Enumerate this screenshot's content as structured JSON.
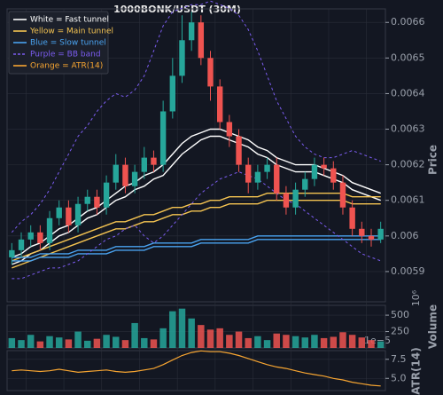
{
  "chart_data": {
    "type": "candlestick",
    "title": "1000BONK/USDT (30M)",
    "ylabel": "Price",
    "open": [
      0.00594,
      0.00596,
      0.00599,
      0.00601,
      0.00598,
      0.00605,
      0.00608,
      0.00603,
      0.00609,
      0.00611,
      0.00608,
      0.00615,
      0.0062,
      0.00614,
      0.00618,
      0.00622,
      0.0062,
      0.00635,
      0.00645,
      0.00655,
      0.0066,
      0.0065,
      0.00642,
      0.00632,
      0.00628,
      0.0062,
      0.00615,
      0.00618,
      0.0062,
      0.00612,
      0.00608,
      0.00613,
      0.00616,
      0.0062,
      0.00619,
      0.00615,
      0.00608,
      0.00602,
      0.006,
      0.00599
    ],
    "high": [
      0.00598,
      0.00601,
      0.00603,
      0.00603,
      0.00607,
      0.0061,
      0.0061,
      0.00611,
      0.00613,
      0.00613,
      0.00617,
      0.00623,
      0.00622,
      0.0062,
      0.00625,
      0.00624,
      0.00638,
      0.0065,
      0.00662,
      0.00663,
      0.00662,
      0.00652,
      0.00644,
      0.00634,
      0.0063,
      0.00622,
      0.0062,
      0.00622,
      0.00622,
      0.00614,
      0.00615,
      0.00618,
      0.00622,
      0.00622,
      0.00621,
      0.00617,
      0.0061,
      0.00604,
      0.00602,
      0.00604
    ],
    "low": [
      0.00592,
      0.00594,
      0.00597,
      0.00596,
      0.00596,
      0.00603,
      0.00601,
      0.00601,
      0.00607,
      0.00606,
      0.00606,
      0.00613,
      0.00612,
      0.00612,
      0.00616,
      0.00618,
      0.00618,
      0.00633,
      0.00643,
      0.00652,
      0.00648,
      0.00638,
      0.0063,
      0.00625,
      0.00618,
      0.00612,
      0.00613,
      0.00616,
      0.0061,
      0.00606,
      0.00606,
      0.00611,
      0.00614,
      0.00617,
      0.00613,
      0.00606,
      0.006,
      0.00598,
      0.00597,
      0.00598
    ],
    "close": [
      0.00596,
      0.00599,
      0.00601,
      0.00598,
      0.00605,
      0.00608,
      0.00603,
      0.00609,
      0.00611,
      0.00608,
      0.00615,
      0.0062,
      0.00614,
      0.00618,
      0.00622,
      0.0062,
      0.00635,
      0.00645,
      0.00655,
      0.0066,
      0.0065,
      0.00642,
      0.00632,
      0.00628,
      0.0062,
      0.00615,
      0.00618,
      0.0062,
      0.00612,
      0.00608,
      0.00613,
      0.00616,
      0.0062,
      0.00619,
      0.00615,
      0.00608,
      0.00602,
      0.006,
      0.00599,
      0.00602
    ],
    "up_color": "#26a69a",
    "down_color": "#ef5350",
    "ylim": [
      0.005815,
      0.006638
    ],
    "yticks": [
      0.0059,
      0.006,
      0.0061,
      0.0062,
      0.0063,
      0.0064,
      0.0065,
      0.0066
    ],
    "grid": true,
    "legend": "upper left",
    "series": [
      {
        "name": "White = Fast tunnel",
        "color": "#ffffff",
        "dash": false,
        "upper": [
          0.00594,
          0.00595,
          0.00597,
          0.00598,
          0.006,
          0.00602,
          0.00603,
          0.00605,
          0.00607,
          0.00608,
          0.0061,
          0.00612,
          0.00614,
          0.00615,
          0.00617,
          0.00618,
          0.0062,
          0.00623,
          0.00626,
          0.00628,
          0.00629,
          0.0063,
          0.0063,
          0.00629,
          0.00628,
          0.00627,
          0.00625,
          0.00624,
          0.00622,
          0.00621,
          0.0062,
          0.0062,
          0.0062,
          0.00619,
          0.00618,
          0.00617,
          0.00615,
          0.00614,
          0.00613,
          0.00612
        ],
        "lower": [
          0.00592,
          0.00593,
          0.00595,
          0.00596,
          0.00598,
          0.006,
          0.00601,
          0.00603,
          0.00605,
          0.00606,
          0.00608,
          0.0061,
          0.00611,
          0.00613,
          0.00614,
          0.00616,
          0.00617,
          0.0062,
          0.00623,
          0.00625,
          0.00627,
          0.00628,
          0.00628,
          0.00627,
          0.00626,
          0.00625,
          0.00623,
          0.00622,
          0.0062,
          0.00619,
          0.00618,
          0.00618,
          0.00618,
          0.00617,
          0.00616,
          0.00615,
          0.00613,
          0.00612,
          0.00611,
          0.0061
        ]
      },
      {
        "name": "Yellow = Main tunnel",
        "color": "#f5c451",
        "dash": false,
        "upper": [
          0.00593,
          0.00594,
          0.00595,
          0.00596,
          0.00597,
          0.00598,
          0.00599,
          0.006,
          0.00601,
          0.00602,
          0.00603,
          0.00604,
          0.00604,
          0.00605,
          0.00606,
          0.00606,
          0.00607,
          0.00608,
          0.00608,
          0.00609,
          0.00609,
          0.0061,
          0.0061,
          0.00611,
          0.00611,
          0.00611,
          0.00611,
          0.00612,
          0.00612,
          0.00612,
          0.00612,
          0.00612,
          0.00612,
          0.00612,
          0.00612,
          0.00612,
          0.00611,
          0.00611,
          0.00611,
          0.00611
        ],
        "lower": [
          0.00591,
          0.00592,
          0.00593,
          0.00594,
          0.00595,
          0.00596,
          0.00597,
          0.00598,
          0.00599,
          0.006,
          0.00601,
          0.00602,
          0.00602,
          0.00603,
          0.00604,
          0.00604,
          0.00605,
          0.00606,
          0.00606,
          0.00607,
          0.00607,
          0.00608,
          0.00608,
          0.00609,
          0.00609,
          0.00609,
          0.00609,
          0.0061,
          0.0061,
          0.0061,
          0.0061,
          0.0061,
          0.0061,
          0.0061,
          0.0061,
          0.0061,
          0.00609,
          0.00609,
          0.00609,
          0.00609
        ]
      },
      {
        "name": "Blue = Slow tunnel",
        "color": "#4aa3f0",
        "dash": false,
        "upper": [
          0.00594,
          0.00594,
          0.00594,
          0.00595,
          0.00595,
          0.00595,
          0.00595,
          0.00596,
          0.00596,
          0.00596,
          0.00596,
          0.00597,
          0.00597,
          0.00597,
          0.00597,
          0.00598,
          0.00598,
          0.00598,
          0.00598,
          0.00598,
          0.00599,
          0.00599,
          0.00599,
          0.00599,
          0.00599,
          0.00599,
          0.006,
          0.006,
          0.006,
          0.006,
          0.006,
          0.006,
          0.006,
          0.006,
          0.006,
          0.006,
          0.006,
          0.006,
          0.006,
          0.006
        ],
        "lower": [
          0.00593,
          0.00593,
          0.00593,
          0.00594,
          0.00594,
          0.00594,
          0.00594,
          0.00595,
          0.00595,
          0.00595,
          0.00595,
          0.00596,
          0.00596,
          0.00596,
          0.00596,
          0.00597,
          0.00597,
          0.00597,
          0.00597,
          0.00597,
          0.00598,
          0.00598,
          0.00598,
          0.00598,
          0.00598,
          0.00598,
          0.00599,
          0.00599,
          0.00599,
          0.00599,
          0.00599,
          0.00599,
          0.00599,
          0.00599,
          0.00599,
          0.00599,
          0.00599,
          0.00599,
          0.00599,
          0.00599
        ]
      },
      {
        "name": "Purple = BB band",
        "color": "#7b5cf0",
        "dash": true,
        "upper": [
          0.00601,
          0.00604,
          0.00606,
          0.00609,
          0.00613,
          0.00618,
          0.00623,
          0.00628,
          0.00631,
          0.00635,
          0.00638,
          0.0064,
          0.00639,
          0.00641,
          0.00645,
          0.00652,
          0.00659,
          0.00663,
          0.00664,
          0.00665,
          0.00665,
          0.00666,
          0.00665,
          0.00664,
          0.00662,
          0.00658,
          0.00652,
          0.00645,
          0.00638,
          0.00633,
          0.00628,
          0.00625,
          0.00623,
          0.00622,
          0.00622,
          0.00623,
          0.00624,
          0.00623,
          0.00622,
          0.00621
        ],
        "lower": [
          0.00588,
          0.00588,
          0.00589,
          0.0059,
          0.00591,
          0.00591,
          0.00592,
          0.00593,
          0.00595,
          0.00597,
          0.00599,
          0.006,
          0.00602,
          0.00603,
          0.006,
          0.00598,
          0.006,
          0.00603,
          0.00606,
          0.00609,
          0.00612,
          0.00614,
          0.00616,
          0.00617,
          0.00618,
          0.00617,
          0.00616,
          0.00614,
          0.00612,
          0.0061,
          0.00609,
          0.00607,
          0.00605,
          0.00603,
          0.00601,
          0.00599,
          0.00597,
          0.00595,
          0.00594,
          0.00593
        ]
      }
    ],
    "volume": {
      "label": "Volume",
      "exponent": "10⁶",
      "values": [
        150,
        120,
        200,
        100,
        180,
        160,
        130,
        250,
        110,
        140,
        200,
        170,
        120,
        380,
        150,
        130,
        300,
        560,
        600,
        450,
        350,
        280,
        300,
        200,
        250,
        150,
        180,
        120,
        220,
        200,
        180,
        160,
        200,
        150,
        170,
        240,
        200,
        160,
        120,
        100
      ],
      "ylim": [
        0,
        650
      ],
      "yticks": [
        250,
        500
      ]
    },
    "atr": {
      "name": "Orange = ATR(14)",
      "label": "ATR(14)",
      "exponent": "1e−5",
      "color": "#f7a531",
      "values": [
        6.0,
        6.1,
        6.0,
        5.9,
        6.0,
        6.2,
        6.0,
        5.8,
        5.9,
        6.0,
        6.1,
        5.9,
        5.8,
        5.9,
        6.1,
        6.3,
        6.8,
        7.4,
        8.0,
        8.4,
        8.6,
        8.5,
        8.5,
        8.3,
        8.0,
        7.6,
        7.2,
        6.8,
        6.5,
        6.3,
        6.0,
        5.7,
        5.5,
        5.3,
        5.0,
        4.8,
        4.5,
        4.3,
        4.1,
        4.0
      ],
      "ylim": [
        3.4,
        8.64
      ],
      "yticks": [
        {
          "value": 5,
          "label": "5.0"
        },
        {
          "value": 7.5,
          "label": "7.5"
        }
      ]
    }
  }
}
